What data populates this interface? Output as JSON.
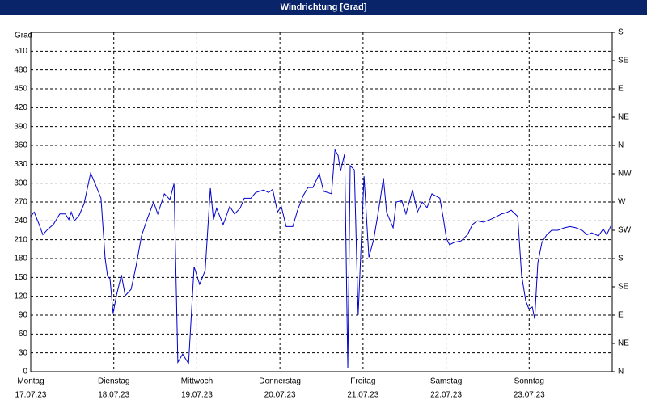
{
  "chart_data": {
    "type": "line",
    "title": "Windrichtung [Grad]",
    "y_label": "Grad",
    "xlim": [
      0,
      168
    ],
    "xticks": [
      {
        "value": 0,
        "label": "Montag"
      },
      {
        "value": 24,
        "label": "Dienstag"
      },
      {
        "value": 48,
        "label": "Mittwoch"
      },
      {
        "value": 72,
        "label": "Donnerstag"
      },
      {
        "value": 96,
        "label": "Freitag"
      },
      {
        "value": 120,
        "label": "Samstag"
      },
      {
        "value": 144,
        "label": "Sonntag"
      }
    ],
    "xtick_dates": [
      "17.07.23",
      "18.07.23",
      "19.07.23",
      "20.07.23",
      "21.07.23",
      "22.07.23",
      "23.07.23"
    ],
    "ylim": [
      0,
      540
    ],
    "yticks": [
      0,
      30,
      60,
      90,
      120,
      150,
      180,
      210,
      240,
      270,
      300,
      330,
      360,
      390,
      420,
      450,
      480,
      510
    ],
    "y2lim": [
      0,
      540
    ],
    "y2ticks": [
      {
        "value": 0,
        "label": "N"
      },
      {
        "value": 45,
        "label": "NE"
      },
      {
        "value": 90,
        "label": "E"
      },
      {
        "value": 135,
        "label": "SE"
      },
      {
        "value": 180,
        "label": "S"
      },
      {
        "value": 225,
        "label": "SW"
      },
      {
        "value": 270,
        "label": "W"
      },
      {
        "value": 315,
        "label": "NW"
      },
      {
        "value": 360,
        "label": "N"
      },
      {
        "value": 405,
        "label": "NE"
      },
      {
        "value": 450,
        "label": "E"
      },
      {
        "value": 495,
        "label": "SE"
      },
      {
        "value": 540,
        "label": "S"
      }
    ],
    "grid": true,
    "x": [
      0,
      1,
      2.3,
      3.5,
      5,
      6.5,
      8.4,
      10,
      11,
      11.7,
      12.6,
      14,
      15.4,
      17.3,
      18.7,
      20.3,
      21.5,
      22.2,
      22.9,
      23.8,
      24.8,
      26.2,
      27.3,
      29,
      30.4,
      32,
      33.6,
      35.5,
      36.7,
      38.6,
      40.2,
      41.4,
      42.5,
      43.9,
      45.6,
      47.2,
      48.8,
      50.4,
      51.9,
      52.8,
      53.7,
      55.6,
      57.5,
      58.9,
      60.5,
      61.7,
      63.6,
      65,
      67.3,
      68.7,
      69.9,
      71.3,
      72.4,
      73.8,
      75.7,
      77.1,
      78.7,
      80.1,
      81.5,
      83.4,
      84.6,
      86.9,
      87.9,
      88.8,
      89.5,
      90.7,
      91.6,
      92.3,
      93.5,
      94.6,
      96.3,
      97.7,
      99.1,
      100.5,
      101.9,
      102.8,
      104.7,
      105.6,
      107.2,
      108.4,
      110.3,
      111.7,
      113.1,
      114.5,
      115.9,
      118.2,
      119.2,
      120.1,
      121,
      122.4,
      124.3,
      126.2,
      127.6,
      129,
      130.8,
      132.7,
      134.6,
      136,
      137.4,
      138.8,
      140.7,
      141.8,
      143,
      143.9,
      144.9,
      145.6,
      146.5,
      147.7,
      149.1,
      150.5,
      152.3,
      154.2,
      155.8,
      157.5,
      159.3,
      160.7,
      162.1,
      164,
      165.4,
      166.4,
      167.8
    ],
    "series": [
      {
        "color": "#0000cc",
        "values": [
          247,
          254,
          236,
          218,
          227,
          234,
          251,
          251,
          242,
          254,
          240,
          249,
          267,
          316,
          298,
          276,
          180,
          152,
          148,
          93,
          122,
          154,
          121,
          131,
          167,
          216,
          242,
          270,
          251,
          283,
          274,
          299,
          15,
          28,
          13,
          167,
          139,
          161,
          292,
          242,
          260,
          234,
          263,
          251,
          260,
          276,
          276,
          285,
          289,
          285,
          290,
          254,
          263,
          231,
          231,
          257,
          280,
          293,
          293,
          315,
          287,
          283,
          353,
          344,
          319,
          347,
          6,
          328,
          321,
          90,
          311,
          182,
          211,
          257,
          308,
          254,
          229,
          270,
          272,
          251,
          289,
          254,
          270,
          261,
          283,
          276,
          244,
          212,
          202,
          206,
          208,
          218,
          234,
          240,
          238,
          242,
          247,
          251,
          253,
          257,
          247,
          154,
          113,
          100,
          103,
          84,
          173,
          206,
          218,
          225,
          225,
          229,
          231,
          229,
          225,
          218,
          221,
          216,
          227,
          218,
          234
        ]
      }
    ]
  }
}
